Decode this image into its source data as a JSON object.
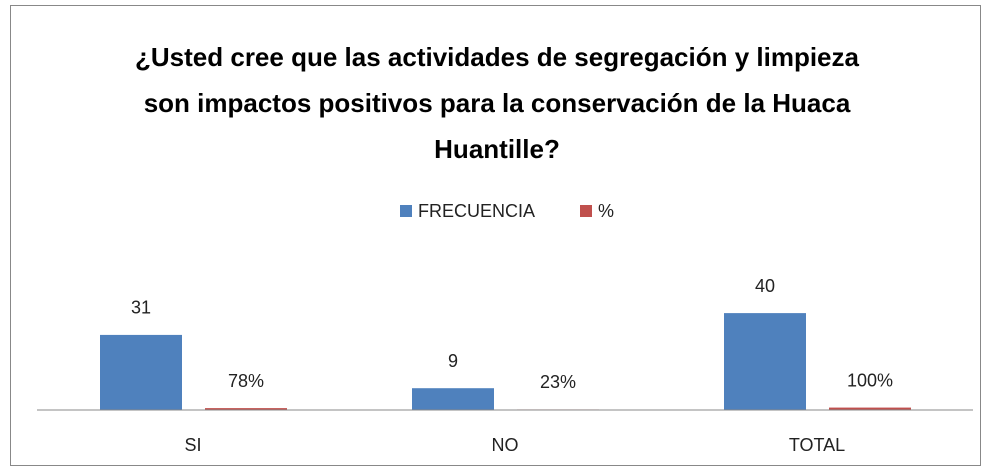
{
  "chart_data": {
    "type": "bar",
    "title": "¿Usted cree que las actividades de segregación y limpieza son impactos positivos para la conservación de la Huaca Huantille?",
    "categories": [
      "SI",
      "NO",
      "TOTAL"
    ],
    "series": [
      {
        "name": "FRECUENCIA",
        "color": "#4f81bd",
        "values": [
          31,
          9,
          40
        ]
      },
      {
        "name": "%",
        "color": "#c0504d",
        "values": [
          0.78,
          0.23,
          1.0
        ],
        "value_labels": [
          "78%",
          "23%",
          "100%"
        ]
      }
    ],
    "ylim": [
      0,
      45
    ],
    "legend": "top"
  }
}
